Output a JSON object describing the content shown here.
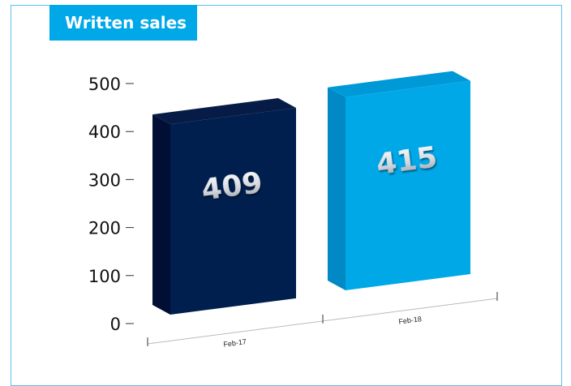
{
  "chart_data": {
    "type": "bar",
    "title": "Written sales",
    "categories": [
      "Feb-17",
      "Feb-18"
    ],
    "values": [
      409,
      415
    ],
    "value_labels": [
      "409",
      "415"
    ],
    "ylim": [
      0,
      500
    ],
    "yticks": [
      "0",
      "100",
      "200",
      "300",
      "400",
      "500"
    ],
    "grid": false,
    "legend": "none",
    "colors": {
      "bar_front": [
        "#001f4e",
        "#00a8e8"
      ],
      "bar_side": [
        "#000f33",
        "#0089c4"
      ],
      "bar_top": [
        "#061c46",
        "#0099d8"
      ],
      "frame": "#5ec0ea",
      "title_bg": "#00a8e8"
    }
  }
}
